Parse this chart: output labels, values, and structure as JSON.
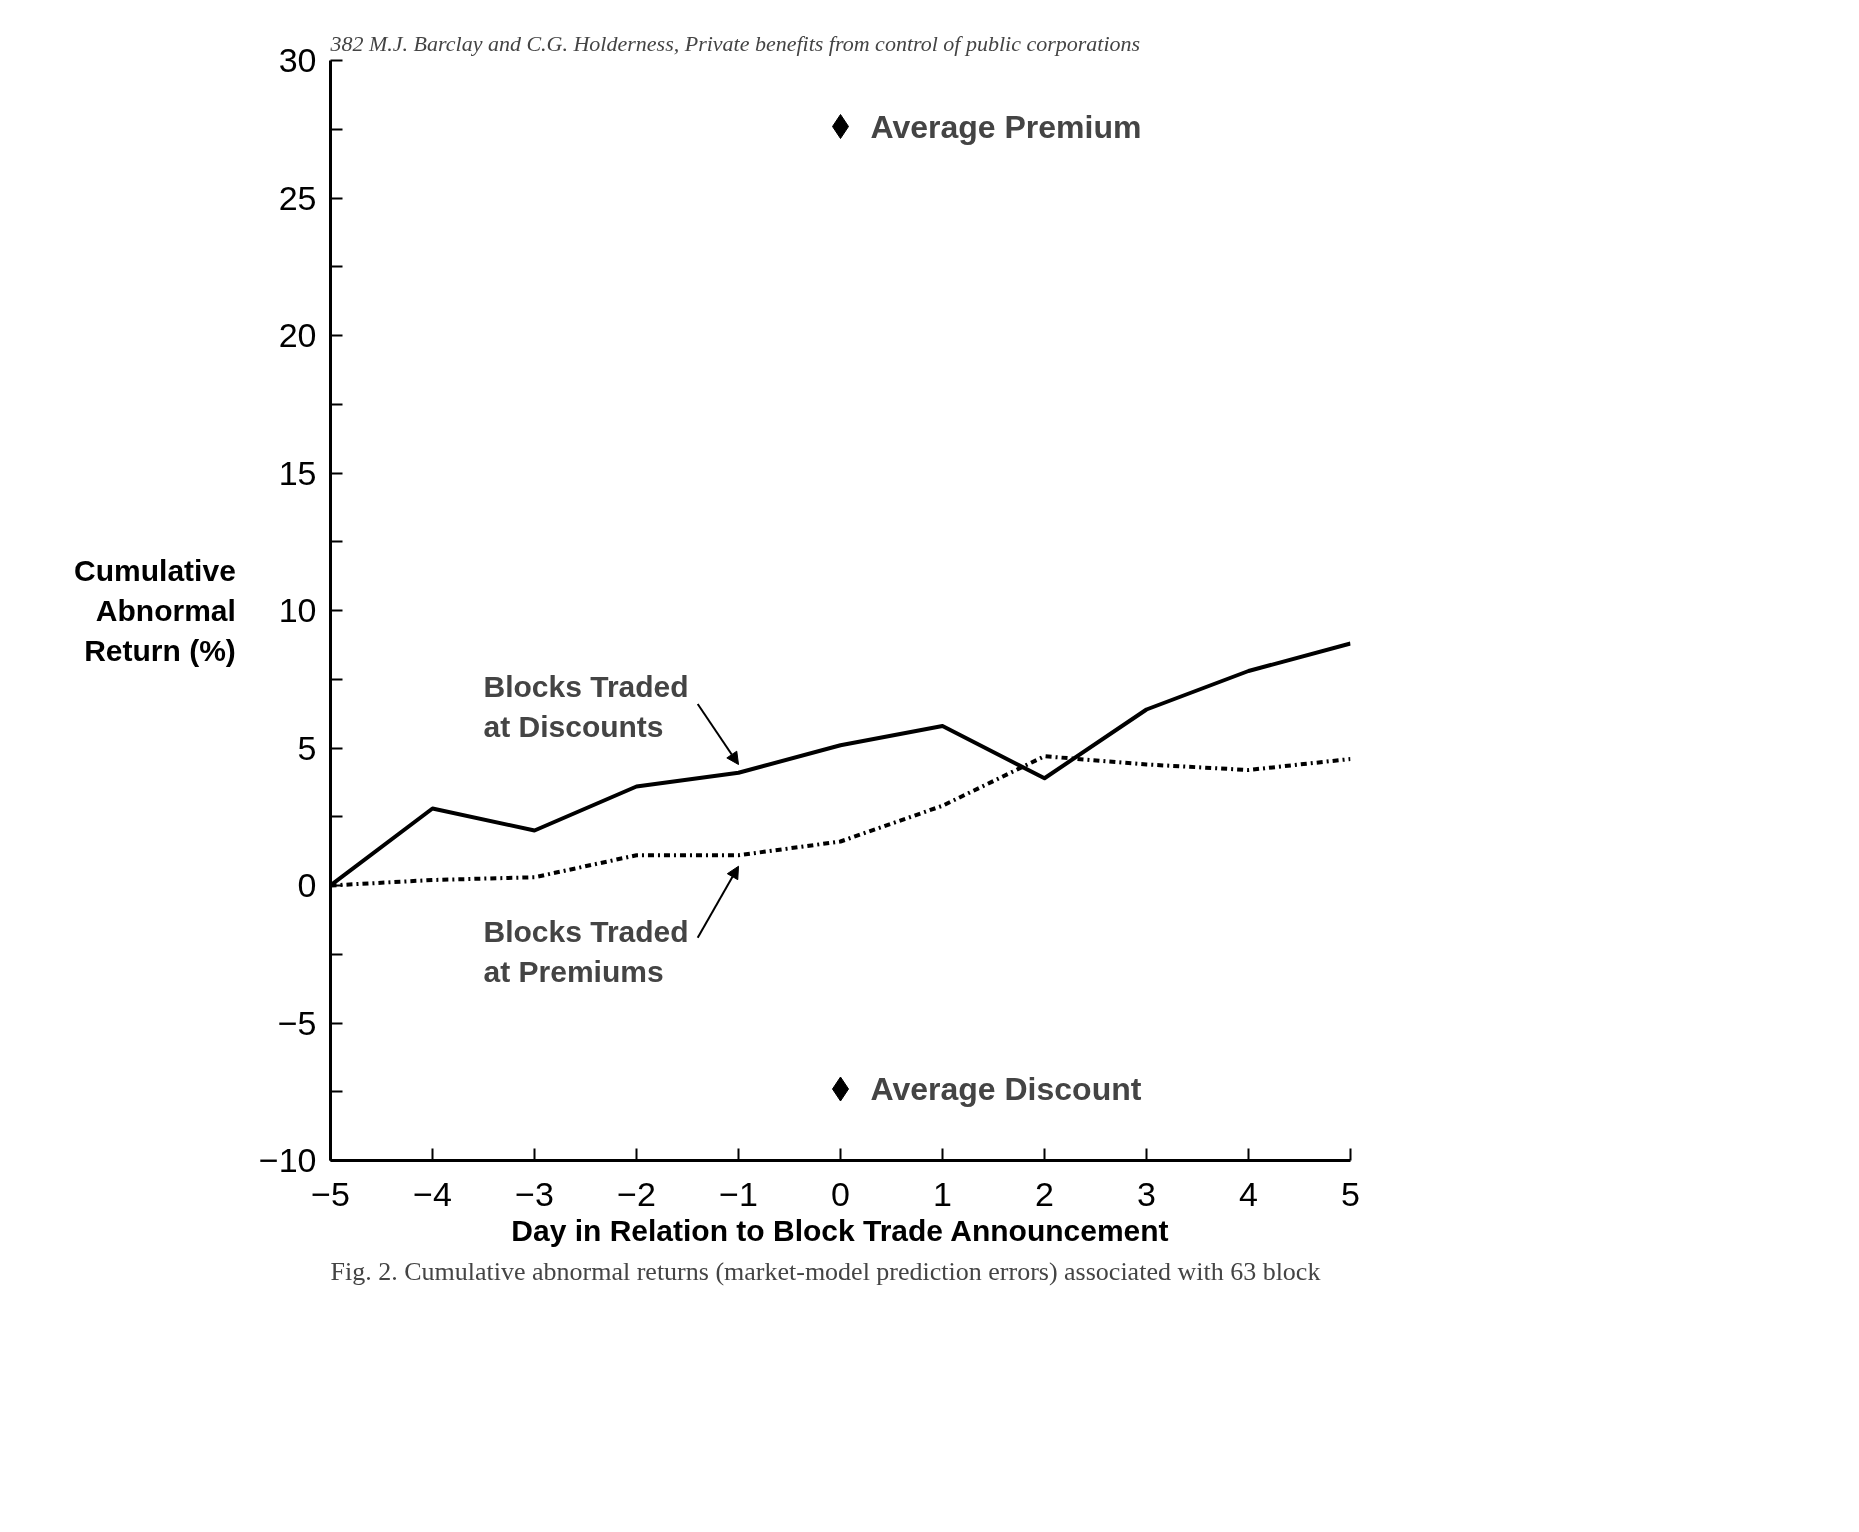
{
  "chart_data": {
    "type": "line",
    "title": "382     M.J. Barclay and C.G. Holderness, Private benefits from control of public corporations",
    "xlabel": "Day in Relation to Block Trade Announcement",
    "ylabel": "Cumulative\nAbnormal\nReturn (%)",
    "x": [
      -5,
      -4,
      -3,
      -2,
      -1,
      0,
      1,
      2,
      3,
      4,
      5
    ],
    "series": [
      {
        "name": "Blocks Traded\nat Discounts",
        "color": "#000000",
        "line_style": "solid",
        "values": [
          0,
          2.8,
          2.0,
          3.6,
          4.1,
          5.1,
          5.8,
          3.9,
          6.4,
          7.8,
          8.8
        ]
      },
      {
        "name": "Blocks Traded\nat Premiums",
        "color": "#000000",
        "line_style": "dashed",
        "values": [
          0,
          0.2,
          0.3,
          1.1,
          1.1,
          1.6,
          2.9,
          4.7,
          4.4,
          4.2,
          4.6
        ]
      },
      {
        "name": "Average Premium",
        "type": "scatter",
        "marker": "diamond",
        "color": "#000000",
        "x": [
          0
        ],
        "values": [
          27.6
        ]
      },
      {
        "name": "Average Discount",
        "type": "scatter",
        "marker": "diamond",
        "color": "#000000",
        "x": [
          0
        ],
        "values": [
          -7.4
        ]
      }
    ],
    "xlim": [
      -5,
      5
    ],
    "ylim": [
      -10,
      30
    ],
    "xticks": [
      -5,
      -4,
      -3,
      -2,
      -1,
      0,
      1,
      2,
      3,
      4,
      5
    ],
    "yticks": [
      -10,
      {
        "value": -7.5,
        "label": null
      },
      -5,
      {
        "value": -2.5,
        "label": null
      },
      0,
      {
        "value": 2.5,
        "label": null
      },
      5,
      {
        "value": 7.5,
        "label": null
      },
      10,
      {
        "value": 12.5,
        "label": null
      },
      15,
      {
        "value": 17.5,
        "label": null
      },
      20,
      {
        "value": 22.5,
        "label": null
      },
      25,
      {
        "value": 27.5,
        "label": null
      },
      30
    ],
    "grid": false,
    "annotations": [
      "Fig. 2. Cumulative abnormal returns (market-model prediction errors) associated with 63 block"
    ]
  }
}
